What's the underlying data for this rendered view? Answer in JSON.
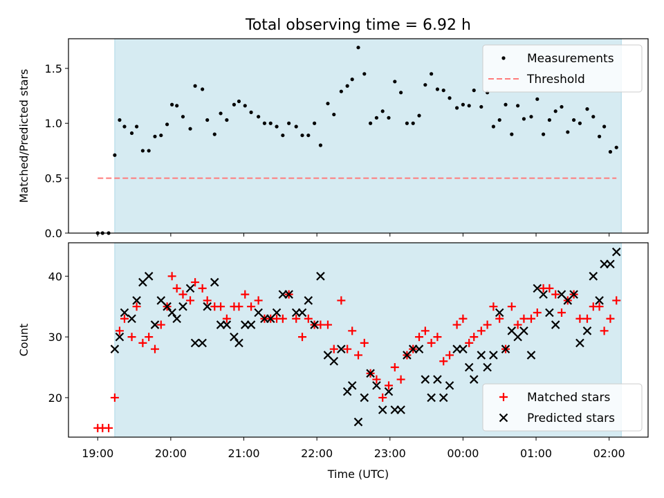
{
  "title": "Total observing time = 6.92 h",
  "colors": {
    "background": "#ffffff",
    "shade": "#add8e6",
    "measurement": "#000000",
    "threshold": "#ff7b7b",
    "matched": "#ff0000",
    "predicted": "#000000"
  },
  "chart_data": [
    {
      "type": "scatter",
      "panel": "top",
      "title": "Total observing time = 6.92 h",
      "xlabel": "",
      "ylabel": "Matched/Predicted stars",
      "xlim": [
        "18:36",
        "02:32"
      ],
      "ylim": [
        0,
        1.77
      ],
      "yticks": [
        "0.0",
        "0.5",
        "1.0",
        "1.5"
      ],
      "grid": false,
      "legend_position": "top-right",
      "shaded_interval": [
        "19:14",
        "02:10"
      ],
      "series": [
        {
          "name": "Measurements",
          "marker": "dot",
          "x": [
            "19:00",
            "19:04",
            "19:09",
            "19:14",
            "19:18",
            "19:22",
            "19:28",
            "19:32",
            "19:37",
            "19:42",
            "19:47",
            "19:52",
            "19:57",
            "20:01",
            "20:05",
            "20:10",
            "20:16",
            "20:20",
            "20:26",
            "20:30",
            "20:36",
            "20:41",
            "20:46",
            "20:52",
            "20:56",
            "21:01",
            "21:06",
            "21:12",
            "21:17",
            "21:22",
            "21:27",
            "21:32",
            "21:37",
            "21:43",
            "21:48",
            "21:53",
            "21:58",
            "22:03",
            "22:09",
            "22:14",
            "22:20",
            "22:25",
            "22:29",
            "22:34",
            "22:39",
            "22:44",
            "22:49",
            "22:54",
            "22:59",
            "23:04",
            "23:09",
            "23:14",
            "23:19",
            "23:24",
            "23:29",
            "23:34",
            "23:39",
            "23:44",
            "23:49",
            "23:55",
            "24:00",
            "24:05",
            "24:09",
            "24:15",
            "24:20",
            "24:25",
            "24:30",
            "24:35",
            "24:40",
            "24:45",
            "24:50",
            "24:56",
            "25:01",
            "25:06",
            "25:11",
            "25:16",
            "25:21",
            "25:26",
            "25:31",
            "25:36",
            "25:42",
            "25:47",
            "25:52",
            "25:56",
            "26:01",
            "26:06"
          ],
          "y": [
            0.0,
            0.0,
            0.0,
            0.71,
            1.03,
            0.97,
            0.91,
            0.97,
            0.75,
            0.75,
            0.88,
            0.89,
            0.99,
            1.17,
            1.16,
            1.06,
            0.95,
            1.34,
            1.31,
            1.03,
            0.9,
            1.09,
            1.03,
            1.17,
            1.2,
            1.16,
            1.1,
            1.06,
            1.0,
            1.0,
            0.97,
            0.89,
            1.0,
            0.97,
            0.89,
            0.89,
            1.0,
            0.8,
            1.18,
            1.08,
            1.29,
            1.34,
            1.4,
            1.69,
            1.45,
            1.0,
            1.05,
            1.11,
            1.05,
            1.38,
            1.28,
            1.0,
            1.0,
            1.07,
            1.35,
            1.45,
            1.31,
            1.3,
            1.23,
            1.14,
            1.17,
            1.16,
            1.3,
            1.15,
            1.28,
            0.97,
            1.03,
            1.17,
            0.9,
            1.16,
            1.04,
            1.06,
            1.22,
            0.9,
            1.03,
            1.11,
            1.15,
            0.92,
            1.03,
            1.0,
            1.13,
            1.06,
            0.88,
            0.97,
            0.74,
            0.78
          ]
        },
        {
          "name": "Threshold",
          "marker": "dashed-line",
          "x": [
            "19:00",
            "26:06"
          ],
          "y": [
            0.5,
            0.5
          ]
        }
      ]
    },
    {
      "type": "scatter",
      "panel": "bottom",
      "xlabel": "Time (UTC)",
      "ylabel": "Count",
      "xlim": [
        "18:36",
        "02:32"
      ],
      "ylim": [
        13.5,
        45.5
      ],
      "yticks": [
        "20",
        "30",
        "40"
      ],
      "xticks": [
        "19:00",
        "20:00",
        "21:00",
        "22:00",
        "23:00",
        "00:00",
        "01:00",
        "02:00"
      ],
      "grid": false,
      "legend_position": "bottom-right",
      "shaded_interval": [
        "19:14",
        "02:10"
      ],
      "series": [
        {
          "name": "Matched stars",
          "marker": "plus",
          "x": [
            "19:00",
            "19:04",
            "19:09",
            "19:14",
            "19:18",
            "19:22",
            "19:28",
            "19:32",
            "19:37",
            "19:42",
            "19:47",
            "19:52",
            "19:57",
            "20:01",
            "20:05",
            "20:10",
            "20:16",
            "20:20",
            "20:26",
            "20:30",
            "20:36",
            "20:41",
            "20:46",
            "20:52",
            "20:56",
            "21:01",
            "21:06",
            "21:12",
            "21:17",
            "21:22",
            "21:27",
            "21:32",
            "21:37",
            "21:43",
            "21:48",
            "21:53",
            "21:58",
            "22:03",
            "22:09",
            "22:14",
            "22:20",
            "22:25",
            "22:29",
            "22:34",
            "22:39",
            "22:44",
            "22:49",
            "22:54",
            "22:59",
            "23:04",
            "23:09",
            "23:14",
            "23:19",
            "23:24",
            "23:29",
            "23:34",
            "23:39",
            "23:44",
            "23:49",
            "23:55",
            "24:00",
            "24:05",
            "24:09",
            "24:15",
            "24:20",
            "24:25",
            "24:30",
            "24:35",
            "24:40",
            "24:45",
            "24:50",
            "24:56",
            "25:01",
            "25:06",
            "25:11",
            "25:16",
            "25:21",
            "25:26",
            "25:31",
            "25:36",
            "25:42",
            "25:47",
            "25:52",
            "25:56",
            "26:01",
            "26:06"
          ],
          "y": [
            15,
            15,
            15,
            20,
            31,
            33,
            30,
            35,
            29,
            30,
            28,
            32,
            35,
            40,
            38,
            37,
            36,
            39,
            38,
            36,
            35,
            35,
            33,
            35,
            35,
            37,
            35,
            36,
            33,
            33,
            33,
            33,
            37,
            33,
            30,
            33,
            32,
            32,
            32,
            28,
            36,
            28,
            31,
            27,
            29,
            24,
            23,
            20,
            22,
            25,
            23,
            27,
            28,
            30,
            31,
            29,
            30,
            26,
            27,
            32,
            33,
            29,
            30,
            31,
            32,
            35,
            33,
            28,
            35,
            32,
            33,
            33,
            34,
            38,
            38,
            37,
            34,
            36,
            37,
            33,
            33,
            35,
            35,
            31,
            33,
            36
          ]
        },
        {
          "name": "Predicted stars",
          "marker": "x",
          "x": [
            "19:14",
            "19:18",
            "19:22",
            "19:28",
            "19:32",
            "19:37",
            "19:42",
            "19:47",
            "19:52",
            "19:57",
            "20:01",
            "20:05",
            "20:10",
            "20:16",
            "20:20",
            "20:26",
            "20:30",
            "20:36",
            "20:41",
            "20:46",
            "20:52",
            "20:56",
            "21:01",
            "21:06",
            "21:12",
            "21:17",
            "21:22",
            "21:27",
            "21:32",
            "21:37",
            "21:43",
            "21:48",
            "21:53",
            "21:58",
            "22:03",
            "22:09",
            "22:14",
            "22:20",
            "22:25",
            "22:29",
            "22:34",
            "22:39",
            "22:44",
            "22:49",
            "22:54",
            "22:59",
            "23:04",
            "23:09",
            "23:14",
            "23:19",
            "23:24",
            "23:29",
            "23:34",
            "23:39",
            "23:44",
            "23:49",
            "23:55",
            "24:00",
            "24:05",
            "24:09",
            "24:15",
            "24:20",
            "24:25",
            "24:30",
            "24:35",
            "24:40",
            "24:45",
            "24:50",
            "24:56",
            "25:01",
            "25:06",
            "25:11",
            "25:16",
            "25:21",
            "25:26",
            "25:31",
            "25:36",
            "25:42",
            "25:47",
            "25:52",
            "25:56",
            "26:01",
            "26:06"
          ],
          "y": [
            28,
            30,
            34,
            33,
            36,
            39,
            40,
            32,
            36,
            35,
            34,
            33,
            35,
            38,
            29,
            29,
            35,
            39,
            32,
            32,
            30,
            29,
            32,
            32,
            34,
            33,
            33,
            34,
            37,
            37,
            34,
            34,
            36,
            32,
            40,
            27,
            26,
            28,
            21,
            22,
            16,
            20,
            24,
            22,
            18,
            21,
            18,
            18,
            27,
            28,
            28,
            23,
            20,
            23,
            20,
            22,
            28,
            28,
            25,
            23,
            27,
            25,
            27,
            34,
            28,
            31,
            30,
            31,
            27,
            38,
            37,
            34,
            32,
            37,
            36,
            37,
            29,
            31,
            40,
            36,
            42,
            42,
            44
          ]
        }
      ]
    }
  ]
}
